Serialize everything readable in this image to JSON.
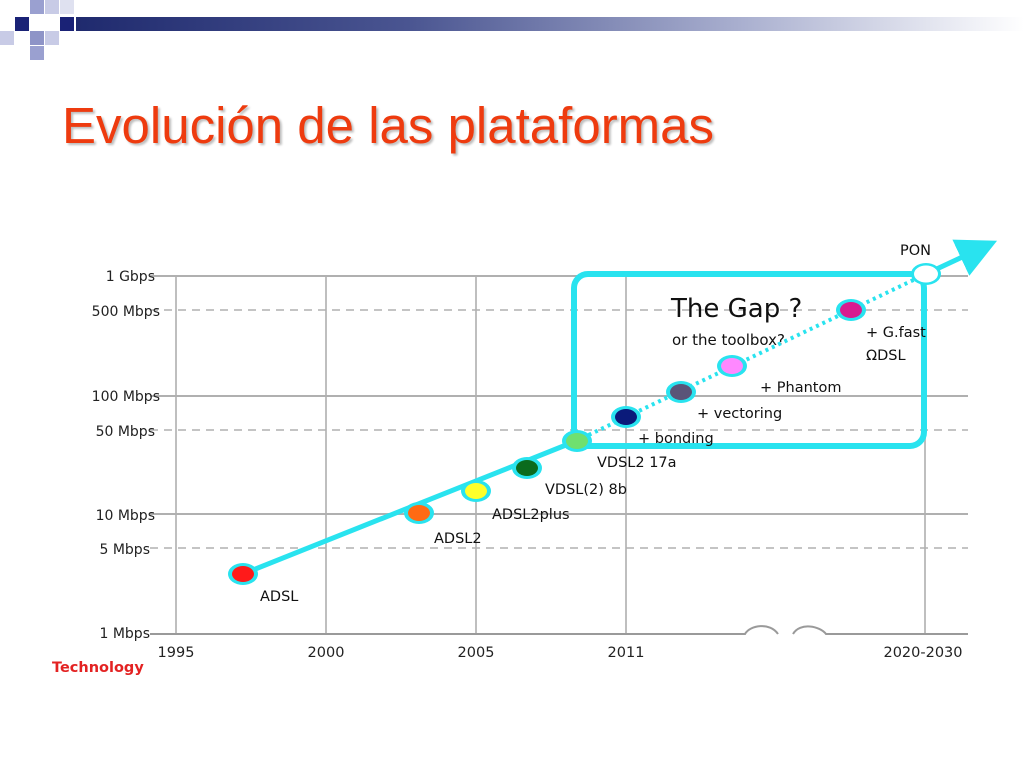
{
  "slide": {
    "title": "Evolución de las plataformas"
  },
  "chart_data": {
    "type": "diagram",
    "x_ticks": [
      "1995",
      "2000",
      "2005",
      "2011",
      "2020-2030"
    ],
    "y_ticks": [
      "1 Gbps",
      "500 Mbps",
      "100 Mbps",
      "50 Mbps",
      "10 Mbps",
      "5 Mbps",
      "1 Mbps"
    ],
    "corner_label": "Technology",
    "gap_title": "The Gap ?",
    "gap_subtitle": "or the toolbox?",
    "points": [
      {
        "label": "ADSL",
        "color": "#ff1a1a"
      },
      {
        "label": "ADSL2",
        "color": "#ff6a13"
      },
      {
        "label": "ADSL2plus",
        "color": "#ffff2a"
      },
      {
        "label": "VDSL(2) 8b",
        "color": "#0b6b1d"
      },
      {
        "label": "VDSL2 17a",
        "color": "#6fe06f"
      },
      {
        "label": "+ bonding",
        "color": "#0a1a7a"
      },
      {
        "label": "+ vectoring",
        "color": "#5a5478"
      },
      {
        "label": "+ Phantom",
        "color": "#ff88ff"
      },
      {
        "label": "+ G.fast",
        "label2": "ΩDSL",
        "color": "#d81b8f"
      },
      {
        "label": "PON",
        "color": "#ffffff"
      }
    ],
    "colors": {
      "trend": "#29e3ef",
      "title": "#ee3b0f",
      "technology": "#e32222"
    }
  }
}
